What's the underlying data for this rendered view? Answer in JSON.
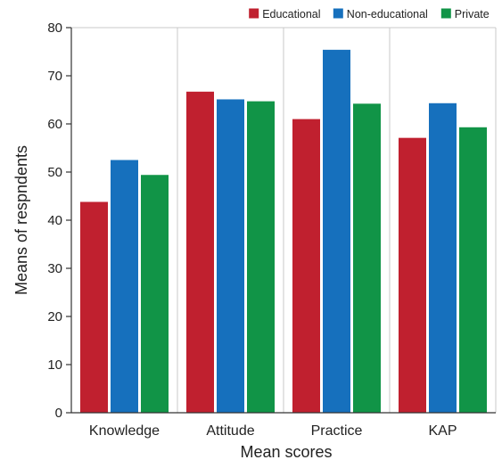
{
  "chart_data": {
    "type": "bar",
    "title": "",
    "xlabel": "Mean scores",
    "ylabel": "Means of respndents",
    "categories": [
      "Knowledge",
      "Attitude",
      "Practice",
      "KAP"
    ],
    "series": [
      {
        "name": "Educational",
        "color": "#c0202f",
        "values": [
          43.8,
          66.7,
          61.0,
          57.1
        ]
      },
      {
        "name": "Non-educational",
        "color": "#1670bd",
        "values": [
          52.5,
          65.1,
          75.4,
          64.3
        ]
      },
      {
        "name": "Private",
        "color": "#119447",
        "values": [
          49.4,
          64.7,
          64.2,
          59.3
        ]
      }
    ],
    "ylim": [
      0,
      80
    ],
    "yticks": [
      0,
      10,
      20,
      30,
      40,
      50,
      60,
      70,
      80
    ],
    "grid": "vertical category separators",
    "legend_position": "top-right"
  }
}
